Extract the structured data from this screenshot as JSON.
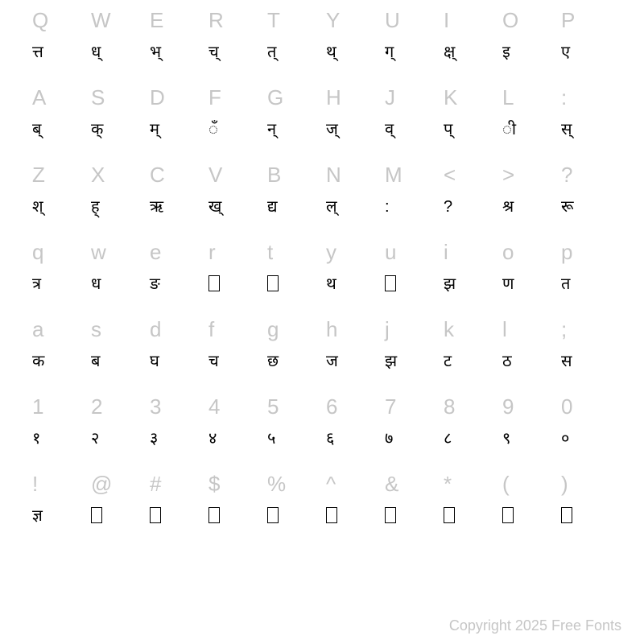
{
  "colors": {
    "background": "#ffffff",
    "key_color": "#c6c6c6",
    "glyph_color": "#000000",
    "footer_color": "#c6c6c6"
  },
  "typography": {
    "key_fontsize": 26,
    "glyph_fontsize": 20,
    "footer_fontsize": 18
  },
  "layout": {
    "columns": 10,
    "rows": 8
  },
  "rows": [
    {
      "keys": [
        "Q",
        "W",
        "E",
        "R",
        "T",
        "Y",
        "U",
        "I",
        "O",
        "P"
      ],
      "glyphs": [
        "त्त",
        "ध्",
        "भ्",
        "च्",
        "त्",
        "थ्",
        "ग्",
        "क्ष्",
        "इ",
        "ए"
      ]
    },
    {
      "keys": [
        "A",
        "S",
        "D",
        "F",
        "G",
        "H",
        "J",
        "K",
        "L",
        ":"
      ],
      "glyphs": [
        "ब्",
        "क्",
        "म्",
        "ँ",
        "न्",
        "ज्",
        "व्",
        "प्",
        "ी",
        "स्"
      ]
    },
    {
      "keys": [
        "Z",
        "X",
        "C",
        "V",
        "B",
        "N",
        "M",
        "<",
        ">",
        "?"
      ],
      "glyphs": [
        "श्",
        "ह्",
        "ऋ",
        "ख्",
        "द्य",
        "ल्",
        ":",
        "?",
        "श्र",
        "रू"
      ]
    },
    {
      "keys": [
        "q",
        "w",
        "e",
        "r",
        "t",
        "y",
        "u",
        "i",
        "o",
        "p"
      ],
      "glyphs": [
        "त्र",
        "ध",
        "ङ",
        "□",
        "□",
        "थ",
        "□",
        "झ",
        "ण",
        "त"
      ]
    },
    {
      "keys": [
        "a",
        "s",
        "d",
        "f",
        "g",
        "h",
        "j",
        "k",
        "l",
        ";"
      ],
      "glyphs": [
        "क",
        "ब",
        "घ",
        "च",
        "छ",
        "ज",
        "झ",
        "ट",
        "ठ",
        "स"
      ]
    },
    {
      "keys": [
        "1",
        "2",
        "3",
        "4",
        "5",
        "6",
        "7",
        "8",
        "9",
        "0"
      ],
      "glyphs": [
        "१",
        "२",
        "३",
        "४",
        "५",
        "६",
        "७",
        "८",
        "९",
        "०"
      ]
    },
    {
      "keys": [
        "!",
        "@",
        "#",
        "$",
        "%",
        "^",
        "&",
        "*",
        "(",
        ")"
      ],
      "glyphs": [
        "ज्ञ",
        "□",
        "□",
        "□",
        "□",
        "□",
        "□",
        "□",
        "□",
        "□"
      ]
    }
  ],
  "footer": "Copyright 2025 Free Fonts"
}
